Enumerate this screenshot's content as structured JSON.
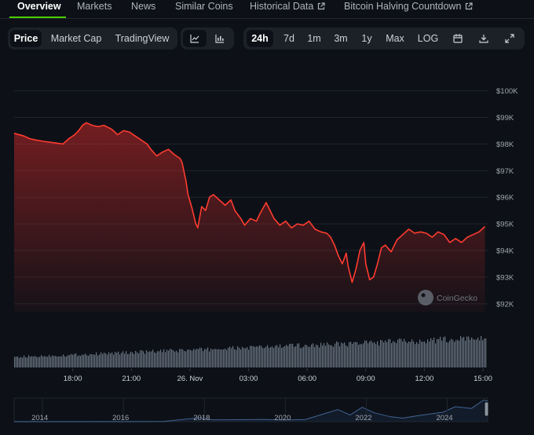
{
  "tabs": [
    {
      "label": "Overview",
      "active": true,
      "external": false
    },
    {
      "label": "Markets",
      "active": false,
      "external": false
    },
    {
      "label": "News",
      "active": false,
      "external": false
    },
    {
      "label": "Similar Coins",
      "active": false,
      "external": false
    },
    {
      "label": "Historical Data",
      "active": false,
      "external": true
    },
    {
      "label": "Bitcoin Halving Countdown",
      "active": false,
      "external": true
    }
  ],
  "chart_type_group": [
    {
      "label": "Price",
      "active": true
    },
    {
      "label": "Market Cap",
      "active": false
    },
    {
      "label": "TradingView",
      "active": false
    }
  ],
  "view_icons": [
    "line-chart-icon",
    "candlestick-chart-icon"
  ],
  "range_group": [
    {
      "label": "24h",
      "active": true
    },
    {
      "label": "7d",
      "active": false
    },
    {
      "label": "1m",
      "active": false
    },
    {
      "label": "3m",
      "active": false
    },
    {
      "label": "1y",
      "active": false
    },
    {
      "label": "Max",
      "active": false
    },
    {
      "label": "LOG",
      "active": false
    }
  ],
  "tool_icons": [
    "calendar-icon",
    "download-icon",
    "fullscreen-icon"
  ],
  "watermark": "CoinGecko",
  "colors": {
    "line": "#ff3b30",
    "accent": "#4bcc00",
    "volume": "#6b7785"
  },
  "chart_data": {
    "type": "area",
    "y_ticks": [
      "$100K",
      "$99K",
      "$98K",
      "$97K",
      "$96K",
      "$95K",
      "$94K",
      "$93K",
      "$92K"
    ],
    "y_tick_values": [
      100000,
      99000,
      98000,
      97000,
      96000,
      95000,
      94000,
      93000,
      92000
    ],
    "ylim": [
      91700,
      100400
    ],
    "x_ticks": [
      "18:00",
      "21:00",
      "26. Nov",
      "03:00",
      "06:00",
      "09:00",
      "12:00",
      "15:00"
    ],
    "x_tick_hours": [
      3,
      6,
      9,
      12,
      15,
      18,
      21,
      24
    ],
    "xlim_hours": [
      0.0,
      24.2
    ],
    "price_points": [
      [
        0.0,
        98400
      ],
      [
        0.5,
        98300
      ],
      [
        0.8,
        98200
      ],
      [
        1.1,
        98150
      ],
      [
        1.5,
        98100
      ],
      [
        2.0,
        98050
      ],
      [
        2.5,
        98000
      ],
      [
        2.8,
        98200
      ],
      [
        3.1,
        98350
      ],
      [
        3.3,
        98500
      ],
      [
        3.5,
        98700
      ],
      [
        3.7,
        98800
      ],
      [
        4.0,
        98700
      ],
      [
        4.3,
        98650
      ],
      [
        4.6,
        98700
      ],
      [
        5.0,
        98550
      ],
      [
        5.3,
        98350
      ],
      [
        5.6,
        98500
      ],
      [
        5.9,
        98450
      ],
      [
        6.2,
        98300
      ],
      [
        6.5,
        98150
      ],
      [
        6.8,
        98000
      ],
      [
        7.0,
        97800
      ],
      [
        7.3,
        97550
      ],
      [
        7.6,
        97700
      ],
      [
        7.9,
        97800
      ],
      [
        8.2,
        97600
      ],
      [
        8.5,
        97450
      ],
      [
        8.6,
        97300
      ],
      [
        8.8,
        96600
      ],
      [
        8.9,
        96100
      ],
      [
        9.1,
        95600
      ],
      [
        9.3,
        95000
      ],
      [
        9.4,
        94850
      ],
      [
        9.6,
        95650
      ],
      [
        9.8,
        95500
      ],
      [
        10.0,
        96000
      ],
      [
        10.2,
        96100
      ],
      [
        10.5,
        95900
      ],
      [
        10.8,
        95700
      ],
      [
        11.1,
        95900
      ],
      [
        11.3,
        95500
      ],
      [
        11.6,
        95200
      ],
      [
        11.8,
        94950
      ],
      [
        12.1,
        95200
      ],
      [
        12.4,
        95100
      ],
      [
        12.6,
        95400
      ],
      [
        12.9,
        95800
      ],
      [
        13.1,
        95500
      ],
      [
        13.3,
        95200
      ],
      [
        13.6,
        94950
      ],
      [
        13.9,
        95100
      ],
      [
        14.2,
        94850
      ],
      [
        14.5,
        95000
      ],
      [
        14.8,
        94950
      ],
      [
        15.1,
        95100
      ],
      [
        15.4,
        94800
      ],
      [
        15.7,
        94700
      ],
      [
        16.0,
        94650
      ],
      [
        16.2,
        94500
      ],
      [
        16.4,
        94200
      ],
      [
        16.6,
        93800
      ],
      [
        16.8,
        93500
      ],
      [
        17.0,
        93900
      ],
      [
        17.1,
        93400
      ],
      [
        17.3,
        92800
      ],
      [
        17.5,
        93300
      ],
      [
        17.7,
        94000
      ],
      [
        17.9,
        94300
      ],
      [
        18.0,
        93500
      ],
      [
        18.2,
        92900
      ],
      [
        18.4,
        93000
      ],
      [
        18.6,
        93500
      ],
      [
        18.8,
        94100
      ],
      [
        19.0,
        94200
      ],
      [
        19.3,
        93950
      ],
      [
        19.6,
        94400
      ],
      [
        19.9,
        94600
      ],
      [
        20.2,
        94800
      ],
      [
        20.5,
        94650
      ],
      [
        20.8,
        94700
      ],
      [
        21.1,
        94650
      ],
      [
        21.4,
        94500
      ],
      [
        21.7,
        94700
      ],
      [
        22.0,
        94600
      ],
      [
        22.3,
        94300
      ],
      [
        22.6,
        94450
      ],
      [
        22.9,
        94300
      ],
      [
        23.2,
        94500
      ],
      [
        23.5,
        94600
      ],
      [
        23.8,
        94700
      ],
      [
        24.1,
        94900
      ]
    ],
    "volume": {
      "start": 0.35,
      "end": 1.0
    },
    "navigator_x_ticks": [
      "2014",
      "2016",
      "2018",
      "2020",
      "2022",
      "2024"
    ],
    "navigator_points": [
      [
        2013.3,
        0.0
      ],
      [
        2015.0,
        0.0
      ],
      [
        2017.0,
        0.01
      ],
      [
        2017.9,
        0.18
      ],
      [
        2018.2,
        0.08
      ],
      [
        2019.5,
        0.1
      ],
      [
        2020.0,
        0.07
      ],
      [
        2020.5,
        0.1
      ],
      [
        2021.0,
        0.38
      ],
      [
        2021.3,
        0.55
      ],
      [
        2021.6,
        0.3
      ],
      [
        2021.9,
        0.65
      ],
      [
        2022.2,
        0.4
      ],
      [
        2022.6,
        0.22
      ],
      [
        2022.9,
        0.16
      ],
      [
        2023.3,
        0.28
      ],
      [
        2023.9,
        0.43
      ],
      [
        2024.2,
        0.68
      ],
      [
        2024.6,
        0.6
      ],
      [
        2024.9,
        0.98
      ],
      [
        2025.0,
        0.94
      ]
    ],
    "navigator_xlim": [
      2013.3,
      2025.0
    ]
  }
}
